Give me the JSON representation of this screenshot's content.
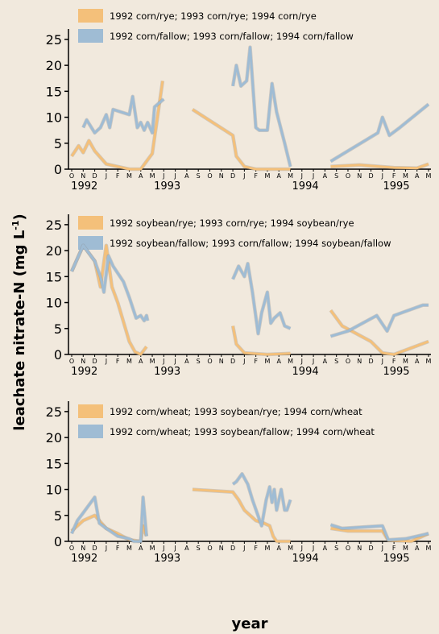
{
  "y_label": {
    "text": "leachate nitrate-N (mg L",
    "superscript": "-1",
    "end": ")"
  },
  "x_label": "year",
  "chart_data": [
    {
      "type": "line",
      "xlim": [
        0,
        31
      ],
      "ylim": [
        0,
        27
      ],
      "yticks": [
        0,
        5,
        10,
        15,
        20,
        25
      ],
      "xticks": [
        {
          "value": 0,
          "label": "O"
        },
        {
          "value": 1,
          "label": "N"
        },
        {
          "value": 2,
          "label": "D"
        },
        {
          "value": 3,
          "label": "J"
        },
        {
          "value": 4,
          "label": "F"
        },
        {
          "value": 5,
          "label": "M"
        },
        {
          "value": 6,
          "label": "A"
        },
        {
          "value": 7,
          "label": "M"
        },
        {
          "value": 8,
          "label": "J"
        },
        {
          "value": 9,
          "label": "J"
        },
        {
          "value": 10,
          "label": "A"
        },
        {
          "value": 11,
          "label": "S"
        },
        {
          "value": 12,
          "label": "O"
        },
        {
          "value": 13,
          "label": "N"
        },
        {
          "value": 14,
          "label": "D"
        },
        {
          "value": 15,
          "label": "J"
        },
        {
          "value": 16,
          "label": "F"
        },
        {
          "value": 17,
          "label": "M"
        },
        {
          "value": 18,
          "label": "A"
        },
        {
          "value": 19,
          "label": "M"
        },
        {
          "value": 20,
          "label": "J"
        },
        {
          "value": 21,
          "label": "J"
        },
        {
          "value": 22,
          "label": "A"
        },
        {
          "value": 23,
          "label": "S"
        },
        {
          "value": 24,
          "label": "O"
        },
        {
          "value": 25,
          "label": "N"
        },
        {
          "value": 26,
          "label": "D"
        },
        {
          "value": 27,
          "label": "J"
        },
        {
          "value": 28,
          "label": "F"
        },
        {
          "value": 29,
          "label": "M"
        },
        {
          "value": 30,
          "label": "A"
        },
        {
          "value": 31,
          "label": "M"
        }
      ],
      "year_labels": [
        {
          "value": 1.1,
          "label": "1992"
        },
        {
          "value": 8.3,
          "label": "1993"
        },
        {
          "value": 20.3,
          "label": "1994"
        },
        {
          "value": 28.2,
          "label": "1995"
        }
      ],
      "series": [
        {
          "name": "1992 corn/rye; 1993 corn/rye; 1994 corn/rye",
          "color": "#f4c07a",
          "x": [
            0,
            0.6,
            1,
            1.5,
            2,
            3,
            4,
            5,
            6,
            7,
            7.9,
            null,
            10.5,
            14,
            14.3,
            15,
            16,
            19,
            null,
            22.5,
            25,
            28,
            30,
            31
          ],
          "values": [
            2.5,
            4.5,
            3.2,
            5.5,
            3.5,
            1,
            0.5,
            0,
            0,
            3,
            17,
            null,
            11.5,
            6.5,
            2.5,
            0.5,
            0,
            0,
            null,
            0.5,
            0.8,
            0.3,
            0.2,
            1
          ]
        },
        {
          "name": "1992 corn/fallow; 1993 corn/fallow; 1994 corn/fallow",
          "color": "#9fbcd4",
          "x": [
            1,
            1.3,
            2,
            2.5,
            3,
            3.3,
            3.6,
            4.3,
            5,
            5.3,
            5.7,
            6,
            6.3,
            6.6,
            7,
            7.2,
            8,
            null,
            14,
            14.3,
            14.7,
            15.2,
            15.5,
            16,
            16.3,
            17,
            17.4,
            17.8,
            18.5,
            19,
            null,
            22.5,
            26.6,
            27,
            27.6,
            28.5,
            31
          ],
          "values": [
            8,
            9.5,
            7,
            8,
            10.5,
            8,
            11.5,
            11,
            10.5,
            14,
            8,
            9,
            7.5,
            9,
            7,
            12,
            13.5,
            null,
            16,
            20,
            16,
            17,
            23.5,
            8,
            7.5,
            7.5,
            16.5,
            11,
            5,
            0.5,
            null,
            1.5,
            7,
            10,
            6.5,
            8,
            12.5
          ]
        }
      ]
    },
    {
      "type": "line",
      "xlim": [
        0,
        31
      ],
      "ylim": [
        0,
        27
      ],
      "yticks": [
        0,
        5,
        10,
        15,
        20,
        25
      ],
      "xticks": [
        {
          "value": 0,
          "label": "O"
        },
        {
          "value": 1,
          "label": "N"
        },
        {
          "value": 2,
          "label": "D"
        },
        {
          "value": 3,
          "label": "J"
        },
        {
          "value": 4,
          "label": "F"
        },
        {
          "value": 5,
          "label": "M"
        },
        {
          "value": 6,
          "label": "A"
        },
        {
          "value": 7,
          "label": "M"
        },
        {
          "value": 8,
          "label": "J"
        },
        {
          "value": 9,
          "label": "J"
        },
        {
          "value": 10,
          "label": "A"
        },
        {
          "value": 11,
          "label": "S"
        },
        {
          "value": 12,
          "label": "O"
        },
        {
          "value": 13,
          "label": "N"
        },
        {
          "value": 14,
          "label": "D"
        },
        {
          "value": 15,
          "label": "J"
        },
        {
          "value": 16,
          "label": "F"
        },
        {
          "value": 17,
          "label": "M"
        },
        {
          "value": 18,
          "label": "A"
        },
        {
          "value": 19,
          "label": "M"
        },
        {
          "value": 20,
          "label": "J"
        },
        {
          "value": 21,
          "label": "J"
        },
        {
          "value": 22,
          "label": "A"
        },
        {
          "value": 23,
          "label": "S"
        },
        {
          "value": 24,
          "label": "O"
        },
        {
          "value": 25,
          "label": "N"
        },
        {
          "value": 26,
          "label": "D"
        },
        {
          "value": 27,
          "label": "J"
        },
        {
          "value": 28,
          "label": "F"
        },
        {
          "value": 29,
          "label": "M"
        },
        {
          "value": 30,
          "label": "A"
        },
        {
          "value": 31,
          "label": "M"
        }
      ],
      "year_labels": [
        {
          "value": 1.1,
          "label": "1992"
        },
        {
          "value": 8.3,
          "label": "1993"
        },
        {
          "value": 20.3,
          "label": "1994"
        },
        {
          "value": 28.2,
          "label": "1995"
        }
      ],
      "series": [
        {
          "name": "1992 soybean/rye; 1993 corn/rye; 1994 soybean/rye",
          "color": "#f4c07a",
          "x": [
            0,
            1,
            2,
            2.5,
            3,
            3.5,
            4,
            5,
            5.5,
            6,
            6.5,
            null,
            14,
            14.3,
            15,
            17,
            19,
            null,
            22.5,
            23.5,
            26,
            27,
            28,
            31
          ],
          "values": [
            16,
            21,
            18,
            13,
            21,
            13,
            10,
            2.5,
            0.5,
            0,
            1.5,
            null,
            5.5,
            2,
            0.3,
            0,
            0.2,
            null,
            8.5,
            5.5,
            2.5,
            0.3,
            0,
            2.5
          ]
        },
        {
          "name": "1992 soybean/fallow; 1993 corn/fallow; 1994 soybean/fallow",
          "color": "#9fbcd4",
          "x": [
            0,
            1,
            2,
            2.5,
            2.8,
            3.2,
            3.6,
            4.5,
            5,
            5.6,
            6,
            6.3,
            6.5,
            6.6,
            null,
            14,
            14.5,
            15,
            15.3,
            15.7,
            16.2,
            16.5,
            17,
            17.3,
            17.6,
            18.1,
            18.5,
            19,
            null,
            22.5,
            24,
            26.5,
            27.4,
            28,
            30.5,
            31
          ],
          "values": [
            16,
            21,
            18,
            15,
            12,
            19,
            17,
            14,
            11,
            7,
            7.5,
            6.5,
            7.5,
            6.5,
            null,
            14.5,
            17,
            15,
            17.5,
            12,
            4,
            8,
            12,
            6,
            7,
            8,
            5.5,
            5,
            null,
            3.5,
            4.5,
            7.5,
            4.5,
            7.5,
            9.5,
            9.5
          ]
        }
      ]
    },
    {
      "type": "line",
      "xlim": [
        0,
        31
      ],
      "ylim": [
        0,
        27
      ],
      "yticks": [
        0,
        5,
        10,
        15,
        20,
        25
      ],
      "xticks": [
        {
          "value": 0,
          "label": "O"
        },
        {
          "value": 1,
          "label": "N"
        },
        {
          "value": 2,
          "label": "D"
        },
        {
          "value": 3,
          "label": "J"
        },
        {
          "value": 4,
          "label": "F"
        },
        {
          "value": 5,
          "label": "M"
        },
        {
          "value": 6,
          "label": "A"
        },
        {
          "value": 7,
          "label": "M"
        },
        {
          "value": 8,
          "label": "J"
        },
        {
          "value": 9,
          "label": "J"
        },
        {
          "value": 10,
          "label": "A"
        },
        {
          "value": 11,
          "label": "S"
        },
        {
          "value": 12,
          "label": "O"
        },
        {
          "value": 13,
          "label": "N"
        },
        {
          "value": 14,
          "label": "D"
        },
        {
          "value": 15,
          "label": "J"
        },
        {
          "value": 16,
          "label": "F"
        },
        {
          "value": 17,
          "label": "M"
        },
        {
          "value": 18,
          "label": "A"
        },
        {
          "value": 19,
          "label": "M"
        },
        {
          "value": 20,
          "label": "J"
        },
        {
          "value": 21,
          "label": "J"
        },
        {
          "value": 22,
          "label": "A"
        },
        {
          "value": 23,
          "label": "S"
        },
        {
          "value": 24,
          "label": "O"
        },
        {
          "value": 25,
          "label": "N"
        },
        {
          "value": 26,
          "label": "D"
        },
        {
          "value": 27,
          "label": "J"
        },
        {
          "value": 28,
          "label": "F"
        },
        {
          "value": 29,
          "label": "M"
        },
        {
          "value": 30,
          "label": "A"
        },
        {
          "value": 31,
          "label": "M"
        }
      ],
      "year_labels": [
        {
          "value": 1.1,
          "label": "1992"
        },
        {
          "value": 8.3,
          "label": "1993"
        },
        {
          "value": 20.3,
          "label": "1994"
        },
        {
          "value": 28.2,
          "label": "1995"
        }
      ],
      "series": [
        {
          "name": "1992 corn/wheat; 1993 soybean/rye; 1994 corn/wheat",
          "color": "#f4c07a",
          "x": [
            0,
            1,
            2,
            3,
            4,
            5,
            6,
            6.2,
            6.5,
            null,
            10.5,
            14,
            14.5,
            15,
            16,
            16.7,
            17.2,
            17.5,
            17.8,
            19,
            null,
            22.5,
            24,
            27,
            27.5,
            29.5,
            31
          ],
          "values": [
            2,
            4,
            5,
            2.5,
            1.5,
            0.3,
            0,
            3,
            1,
            null,
            10,
            9.5,
            8,
            6,
            4,
            3.5,
            3,
            1,
            0,
            0,
            null,
            2.5,
            2,
            2,
            0.2,
            0,
            1.5
          ]
        },
        {
          "name": "1992 corn/wheat; 1993 soybean/fallow; 1994 corn/wheat",
          "color": "#9fbcd4",
          "x": [
            0,
            0.5,
            1,
            2,
            2.4,
            3,
            4,
            5,
            5.4,
            6,
            6.2,
            6.5,
            null,
            14,
            14.3,
            14.8,
            15.3,
            15.7,
            16.5,
            16.9,
            17.2,
            17.4,
            17.6,
            17.8,
            18.2,
            18.5,
            18.7,
            19,
            null,
            22.5,
            23.5,
            27,
            27.5,
            29,
            31
          ],
          "values": [
            1.5,
            4,
            5.5,
            8.5,
            3.5,
            2.5,
            1,
            0.5,
            0,
            0,
            8.5,
            1,
            null,
            11,
            11.5,
            13,
            11,
            8,
            3,
            8,
            10.5,
            7.5,
            10,
            6,
            10,
            6,
            6,
            8,
            null,
            3.2,
            2.5,
            3,
            0.3,
            0.5,
            1.5
          ]
        }
      ]
    }
  ]
}
